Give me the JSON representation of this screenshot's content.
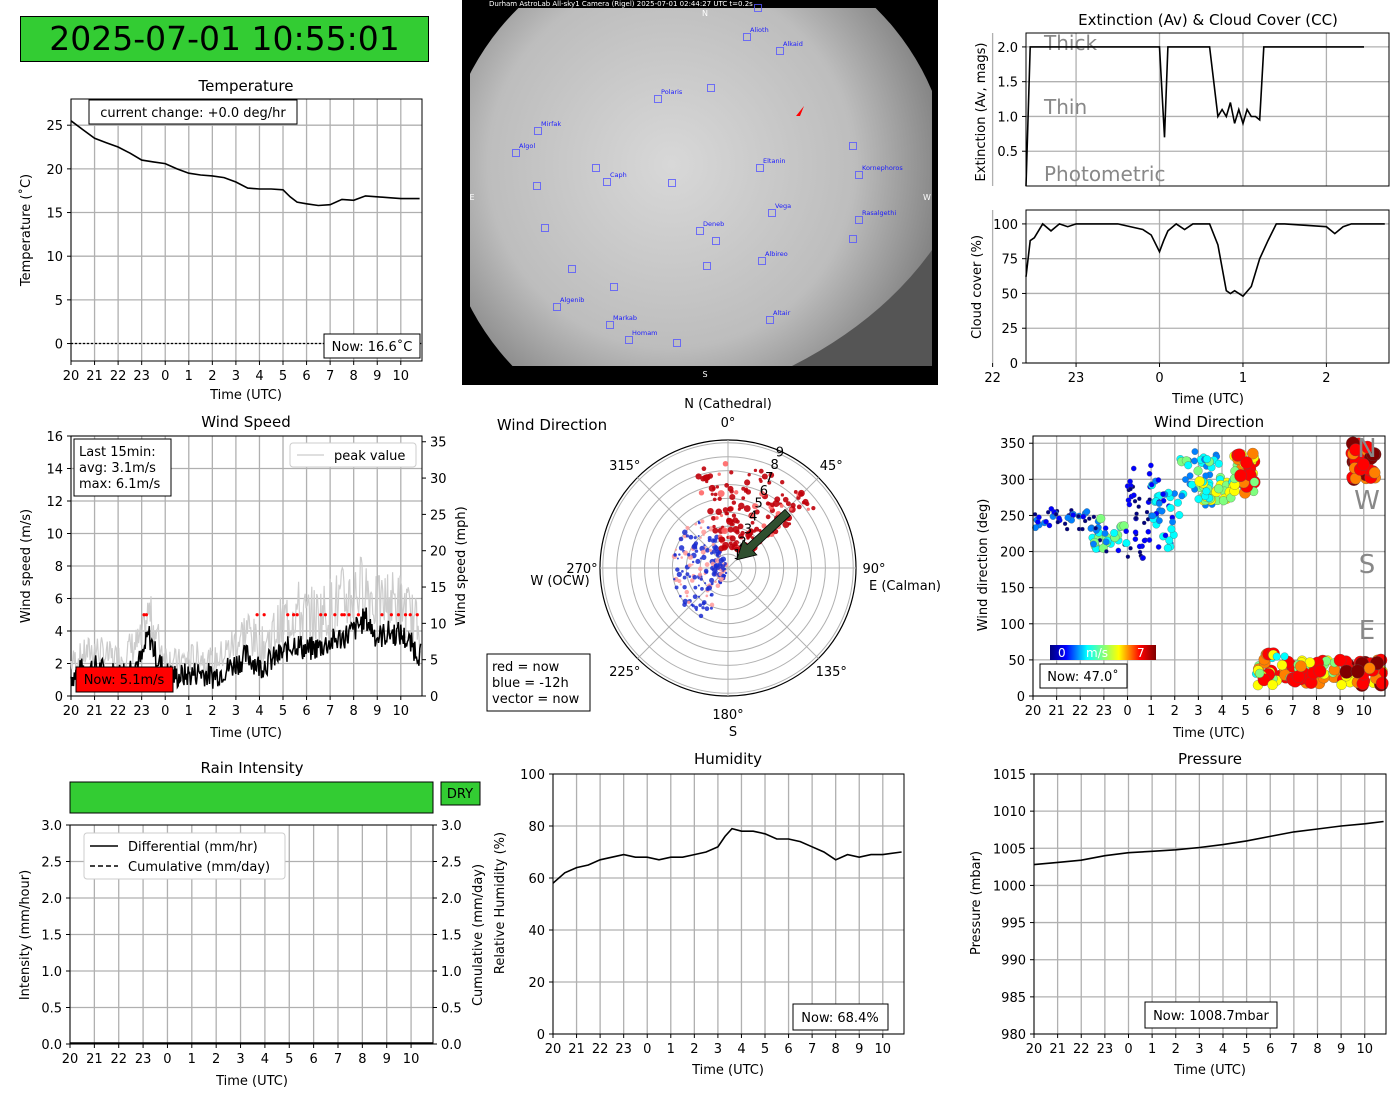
{
  "clock": {
    "value": "2025-07-01 10:55:01",
    "color": "#33cc33"
  },
  "hours_labels": [
    "20",
    "21",
    "22",
    "23",
    "0",
    "1",
    "2",
    "3",
    "4",
    "5",
    "6",
    "7",
    "8",
    "9",
    "10"
  ],
  "temperature": {
    "title": "Temperature",
    "ylabel": "Temperature (˚C)",
    "xlabel": "Time (UTC)",
    "yticks": [
      "0",
      "5",
      "10",
      "15",
      "20",
      "25"
    ],
    "change_note": "current change: +0.0 deg/hr",
    "now": "Now: 16.6˚C",
    "chart_data": {
      "type": "line",
      "x": [
        20,
        20.5,
        21,
        21.5,
        22,
        22.5,
        23,
        23.5,
        24,
        24.5,
        25,
        25.5,
        26,
        26.5,
        27,
        27.5,
        28,
        28.5,
        29,
        29.3,
        29.6,
        30,
        30.5,
        31,
        31.5,
        32,
        32.5,
        33,
        33.5,
        34,
        34.8
      ],
      "y": [
        25.5,
        24.5,
        23.5,
        23.0,
        22.5,
        21.8,
        21.0,
        20.8,
        20.6,
        20.0,
        19.5,
        19.3,
        19.2,
        19.0,
        18.5,
        17.8,
        17.7,
        17.7,
        17.6,
        16.8,
        16.2,
        16.0,
        15.8,
        15.9,
        16.5,
        16.4,
        16.9,
        16.8,
        16.7,
        16.6,
        16.6
      ],
      "ylim": [
        -2,
        28
      ],
      "xlim": [
        20,
        34.9
      ]
    }
  },
  "allsky": {
    "header": "Durham AstroLab All-sky1 Camera (Rigel)        2025-07-01 02:44:27 UTC        t=0.2s",
    "north": "N",
    "south": "S",
    "east": "E",
    "west": "W",
    "stars": [
      "Alioth",
      "Alkaid",
      "Polaris",
      "Mirfak",
      "Algol",
      "Caph",
      "Eltanin",
      "Kornephoros",
      "Vega",
      "Rasalgethi",
      "Deneb",
      "Albireo",
      "Algenib",
      "Markab",
      "Homam",
      "Altair"
    ]
  },
  "extinction": {
    "title": "Extinction (Av) & Cloud Cover (CC)",
    "ylabel": "Extinction (Av, mags)",
    "yticks": [
      "0.5",
      "1.0",
      "1.5",
      "2.0"
    ],
    "zone_labels": [
      "Thick",
      "Thin",
      "Photometric"
    ],
    "chart_data": {
      "type": "line",
      "x": [
        22.4,
        22.45,
        22.5,
        23.3,
        24.0,
        24.06,
        24.1,
        24.15,
        24.6,
        24.7,
        24.75,
        24.8,
        24.85,
        24.9,
        24.95,
        25.0,
        25.05,
        25.1,
        25.15,
        25.2,
        25.25,
        26.4,
        26.45
      ],
      "y": [
        0.0,
        2.0,
        2.0,
        2.0,
        2.0,
        0.7,
        2.0,
        2.0,
        2.0,
        1.0,
        1.1,
        1.0,
        1.2,
        0.9,
        1.1,
        0.9,
        1.1,
        1.0,
        1.0,
        0.95,
        2.0,
        2.0,
        2.0
      ],
      "ylim": [
        0,
        2.2
      ],
      "xlim": [
        22.4,
        26.75
      ]
    }
  },
  "cloud": {
    "ylabel": "Cloud cover (%)",
    "xlabel": "Time (UTC)",
    "yticks": [
      "0",
      "25",
      "50",
      "75",
      "100"
    ],
    "xticks": [
      "22",
      "23",
      "0",
      "1",
      "2"
    ],
    "chart_data": {
      "type": "line",
      "x": [
        22.4,
        22.45,
        22.5,
        22.6,
        22.7,
        22.8,
        22.9,
        23.0,
        23.5,
        23.8,
        23.9,
        24.0,
        24.05,
        24.1,
        24.2,
        24.3,
        24.4,
        24.5,
        24.6,
        24.7,
        24.8,
        24.85,
        24.9,
        25.0,
        25.1,
        25.2,
        25.3,
        25.4,
        25.5,
        26.0,
        26.1,
        26.2,
        26.3,
        26.7
      ],
      "y": [
        62,
        88,
        90,
        100,
        95,
        100,
        98,
        100,
        100,
        96,
        92,
        80,
        88,
        95,
        100,
        96,
        100,
        100,
        100,
        85,
        52,
        50,
        52,
        48,
        55,
        75,
        88,
        100,
        100,
        98,
        93,
        98,
        100,
        100
      ],
      "ylim": [
        0,
        110
      ],
      "xlim": [
        22.4,
        26.75
      ]
    }
  },
  "wind_speed": {
    "title": "Wind Speed",
    "ylabel": "Wind speed (m/s)",
    "ylabel_right": "Wind speed (mph)",
    "xlabel": "Time (UTC)",
    "yticks": [
      "0",
      "2",
      "4",
      "6",
      "8",
      "10",
      "12",
      "14",
      "16"
    ],
    "yticks_right": [
      "0",
      "5",
      "10",
      "15",
      "20",
      "25",
      "30",
      "35"
    ],
    "legend": "peak value",
    "stats": [
      "Last 15min:",
      "avg: 3.1m/s",
      "max: 6.1m/s"
    ],
    "now": "Now: 5.1m/s",
    "now_color": "#ff0000",
    "chart_data": {
      "type": "line",
      "x": [
        20,
        20.5,
        21,
        21.5,
        22,
        22.5,
        23,
        23.3,
        23.6,
        24,
        24.5,
        25,
        25.5,
        26,
        26.5,
        27,
        27.5,
        28,
        28.5,
        29,
        29.5,
        30,
        30.5,
        31,
        31.5,
        32,
        32.5,
        33,
        33.5,
        34,
        34.8
      ],
      "y": [
        1.2,
        1.6,
        1.8,
        1.5,
        1.3,
        1.8,
        2.2,
        3.8,
        2.5,
        1.4,
        1.2,
        1.3,
        1.5,
        1.2,
        1.6,
        2.0,
        2.5,
        1.8,
        2.2,
        2.6,
        3.3,
        2.8,
        3.0,
        3.3,
        3.6,
        4.0,
        4.8,
        3.6,
        3.9,
        3.8,
        2.6
      ],
      "peak_y": [
        2.5,
        3.0,
        3.5,
        3.0,
        2.8,
        3.5,
        4.0,
        6.0,
        4.5,
        3.0,
        2.5,
        2.8,
        3.0,
        2.5,
        3.2,
        4.0,
        5.0,
        3.5,
        4.5,
        5.5,
        6.5,
        5.8,
        6.0,
        6.5,
        7.0,
        7.5,
        8.0,
        6.5,
        7.0,
        6.8,
        5.0
      ],
      "ylim": [
        0,
        16
      ],
      "xlim": [
        20,
        34.9
      ]
    }
  },
  "wind_dir_polar": {
    "title": "Wind Direction",
    "top": "N (Cathedral)",
    "left": "W (OCW)",
    "right": "E (Calman)",
    "bottom": "S",
    "angles": [
      "0°",
      "45°",
      "90°",
      "135°",
      "180°",
      "225°",
      "270°",
      "315°"
    ],
    "radii": [
      "1",
      "2",
      "3",
      "4",
      "5",
      "6",
      "7",
      "8",
      "9"
    ],
    "legend": [
      "red = now",
      "blue = -12h",
      "vector = now"
    ],
    "vector": {
      "direction_deg": 47,
      "speed": 5.1
    }
  },
  "wind_dir_scatter": {
    "title": "Wind Direction",
    "ylabel": "Wind direction (deg)",
    "xlabel": "Time (UTC)",
    "yticks": [
      "0",
      "50",
      "100",
      "150",
      "200",
      "250",
      "300",
      "350"
    ],
    "compass": [
      "N",
      "W",
      "S",
      "E"
    ],
    "colorbar": {
      "min": "0",
      "label": "m/s",
      "max": "7"
    },
    "now": "Now: 47.0˚"
  },
  "rain": {
    "title": "Rain Intensity",
    "status": "DRY",
    "status_color": "#33cc33",
    "ylabel": "Intensity (mm/hour)",
    "ylabel_right": "Cumulative (mm/day)",
    "xlabel": "Time (UTC)",
    "yticks": [
      "0.0",
      "0.5",
      "1.0",
      "1.5",
      "2.0",
      "2.5",
      "3.0"
    ],
    "legend": [
      "Differential (mm/hr)",
      "Cumulative (mm/day)"
    ],
    "chart_data": {
      "type": "line",
      "x": [
        20,
        34.9
      ],
      "y": [
        0,
        0
      ],
      "ylim": [
        0,
        3
      ],
      "xlim": [
        20,
        34.9
      ]
    }
  },
  "humidity": {
    "title": "Humidity",
    "ylabel": "Relative Humidity (%)",
    "xlabel": "Time (UTC)",
    "yticks": [
      "0",
      "20",
      "40",
      "60",
      "80",
      "100"
    ],
    "now": "Now: 68.4%",
    "chart_data": {
      "type": "line",
      "x": [
        20,
        20.5,
        21,
        21.5,
        22,
        22.5,
        23,
        23.5,
        24,
        24.5,
        25,
        25.5,
        26,
        26.5,
        27,
        27.3,
        27.6,
        28,
        28.5,
        29,
        29.5,
        30,
        30.5,
        31,
        31.5,
        32,
        32.5,
        33,
        33.5,
        34,
        34.8
      ],
      "y": [
        58,
        62,
        64,
        65,
        67,
        68,
        69,
        68,
        68,
        67,
        68,
        68,
        69,
        70,
        72,
        76,
        79,
        78,
        78,
        77,
        75,
        75,
        74,
        72,
        70,
        67,
        69,
        68,
        69,
        69,
        70
      ],
      "ylim": [
        0,
        100
      ],
      "xlim": [
        20,
        34.9
      ]
    }
  },
  "pressure": {
    "title": "Pressure",
    "ylabel": "Pressure (mbar)",
    "xlabel": "Time (UTC)",
    "yticks": [
      "980",
      "985",
      "990",
      "995",
      "1000",
      "1005",
      "1010",
      "1015"
    ],
    "now": "Now: 1008.7mbar",
    "chart_data": {
      "type": "line",
      "x": [
        20,
        21,
        22,
        23,
        24,
        25,
        26,
        27,
        28,
        29,
        30,
        31,
        32,
        33,
        34,
        34.8
      ],
      "y": [
        1002.8,
        1003.1,
        1003.4,
        1004.0,
        1004.4,
        1004.6,
        1004.8,
        1005.1,
        1005.5,
        1006.0,
        1006.6,
        1007.2,
        1007.6,
        1008.0,
        1008.3,
        1008.6
      ],
      "ylim": [
        980,
        1015
      ],
      "xlim": [
        20,
        34.9
      ]
    }
  }
}
